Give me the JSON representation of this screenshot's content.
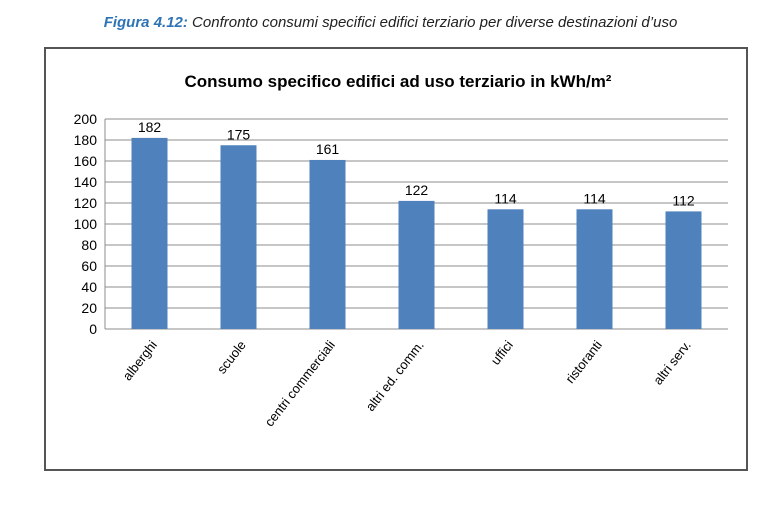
{
  "caption": {
    "figure_label": "Figura 4.12:",
    "text": " Confronto consumi specifici edifici terziario per diverse destinazioni d’uso"
  },
  "chart_data": {
    "type": "bar",
    "title": "Consumo specifico edifici ad uso terziario in kWh/m²",
    "categories": [
      "alberghi",
      "scuole",
      "centri commerciali",
      "altri ed. comm.",
      "uffici",
      "ristoranti",
      "altri serv."
    ],
    "values": [
      182,
      175,
      161,
      122,
      114,
      114,
      112
    ],
    "data_labels": [
      "182",
      "175",
      "161",
      "122",
      "114",
      "114",
      "112"
    ],
    "y_ticks": [
      "0",
      "20",
      "40",
      "60",
      "80",
      "100",
      "120",
      "140",
      "160",
      "180",
      "200"
    ],
    "ylim": [
      0,
      200
    ],
    "grid": true,
    "legend": "none",
    "bar_color": "#4f81bd",
    "grid_color": "#8c8c8c"
  }
}
